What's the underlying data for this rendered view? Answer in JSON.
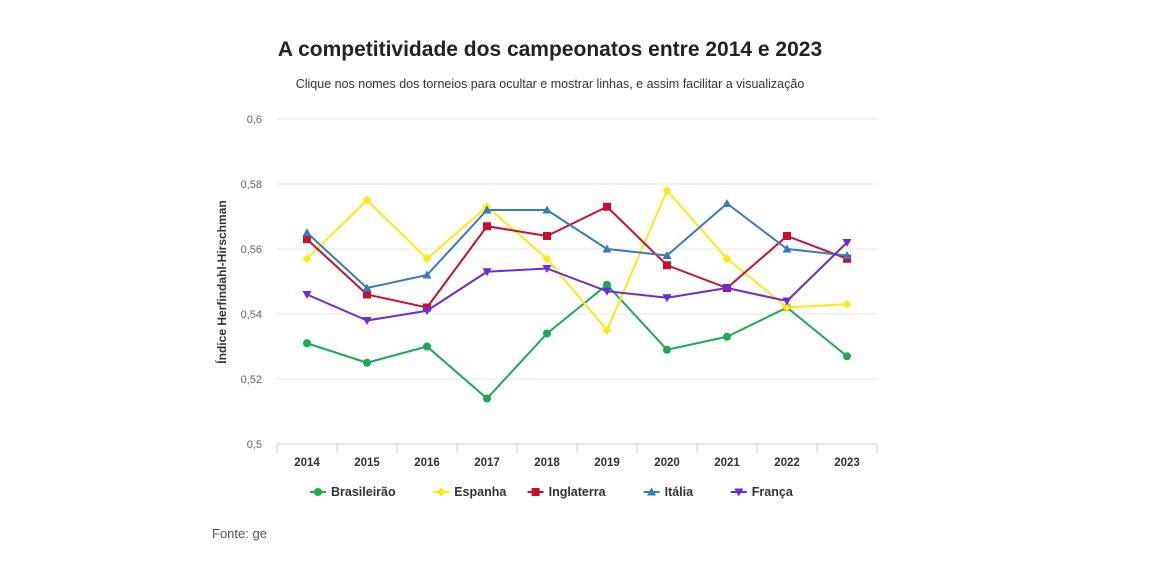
{
  "header": {
    "title": "A competitividade dos campeonatos entre 2014 e 2023",
    "subtitle": "Clique nos nomes dos torneios para ocultar e mostrar linhas, e assim facilitar a visualização"
  },
  "footer": {
    "source": "Fonte: ge"
  },
  "chart_data": {
    "type": "line",
    "title": "A competitividade dos campeonatos entre 2014 e 2023",
    "subtitle": "Clique nos nomes dos torneios para ocultar e mostrar linhas, e assim facilitar a visualização",
    "xlabel": "",
    "ylabel": "Índice Herfindahl-Hirschman",
    "ylim": [
      0.5,
      0.6
    ],
    "yticks": [
      "0,5",
      "0,52",
      "0,54",
      "0,56",
      "0,58",
      "0,6"
    ],
    "grid": true,
    "legend_position": "bottom",
    "categories": [
      "2014",
      "2015",
      "2016",
      "2017",
      "2018",
      "2019",
      "2020",
      "2021",
      "2022",
      "2023"
    ],
    "series": [
      {
        "name": "Brasileirão",
        "color": "#1aaa55",
        "marker": "circle",
        "values": [
          0.531,
          0.525,
          0.53,
          0.514,
          0.534,
          0.549,
          0.529,
          0.533,
          0.542,
          0.527
        ]
      },
      {
        "name": "Espanha",
        "color": "#ffe81a",
        "marker": "diamond",
        "values": [
          0.557,
          0.575,
          0.557,
          0.573,
          0.557,
          0.535,
          0.578,
          0.557,
          0.542,
          0.543
        ]
      },
      {
        "name": "Inglaterra",
        "color": "#c8102e",
        "marker": "square",
        "values": [
          0.563,
          0.546,
          0.542,
          0.567,
          0.564,
          0.573,
          0.555,
          0.548,
          0.564,
          0.557
        ]
      },
      {
        "name": "Itália",
        "color": "#3a7ab8",
        "marker": "triangle",
        "values": [
          0.565,
          0.548,
          0.552,
          0.572,
          0.572,
          0.56,
          0.558,
          0.574,
          0.56,
          0.558
        ]
      },
      {
        "name": "França",
        "color": "#6a2bd8",
        "marker": "triangle-down",
        "values": [
          0.546,
          0.538,
          0.541,
          0.553,
          0.554,
          0.547,
          0.545,
          0.548,
          0.544,
          0.562
        ]
      }
    ]
  }
}
